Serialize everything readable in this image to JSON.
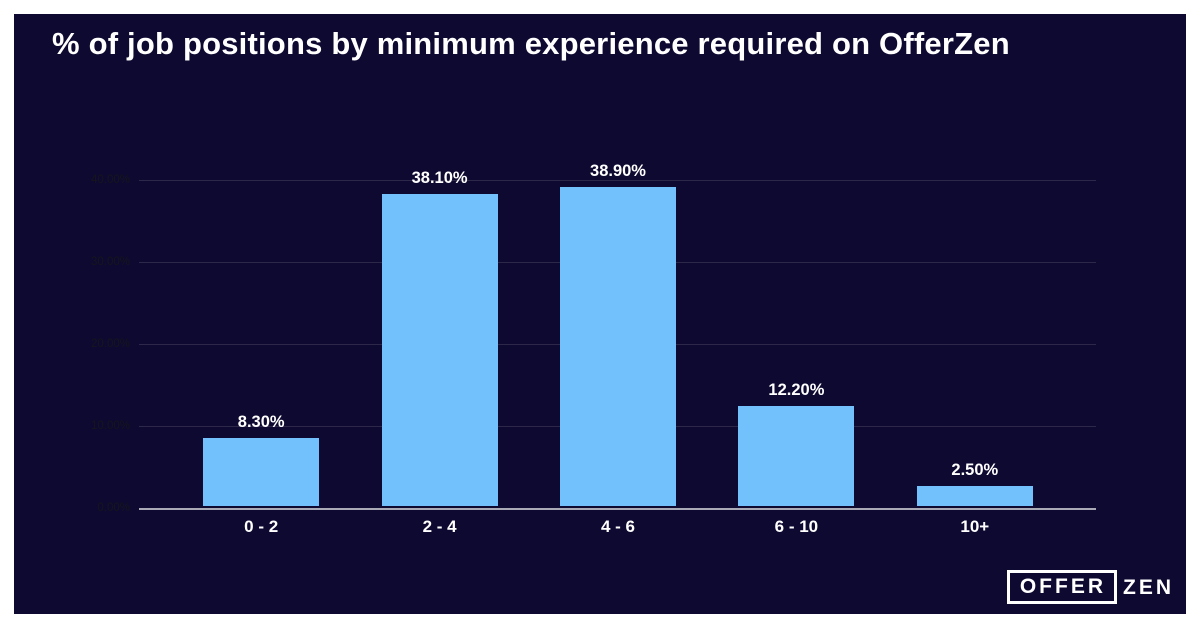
{
  "title": "% of job positions by minimum experience required on OfferZen",
  "logo": {
    "boxed": "OFFER",
    "plain": "ZEN"
  },
  "colors": {
    "page_background": "#ffffff",
    "card_background": "#0e0930",
    "bar_fill": "#72c1fc",
    "gridline": "rgba(255,255,255,0.13)",
    "baseline": "#a9aab6",
    "title_text": "#ffffff",
    "y_tick_text": "#15151d",
    "data_label_text": "#ffffff",
    "x_label_text": "#ffffff"
  },
  "chart_data": {
    "type": "bar",
    "title": "% of job positions by minimum experience required on OfferZen",
    "categories": [
      "0 - 2",
      "2 - 4",
      "4 - 6",
      "6 - 10",
      "10+"
    ],
    "values": [
      8.3,
      38.1,
      38.9,
      12.2,
      2.5
    ],
    "value_labels": [
      "8.30%",
      "38.10%",
      "38.90%",
      "12.20%",
      "2.50%"
    ],
    "y_ticks": [
      {
        "value": 40,
        "label": "40.00%"
      },
      {
        "value": 30,
        "label": "30.00%"
      },
      {
        "value": 20,
        "label": "20.00%"
      },
      {
        "value": 10,
        "label": "10.00%"
      },
      {
        "value": 0,
        "label": "0.00%"
      }
    ],
    "xlabel": "",
    "ylabel": "",
    "ylim": [
      0,
      40
    ],
    "grid": true,
    "legend": false
  }
}
